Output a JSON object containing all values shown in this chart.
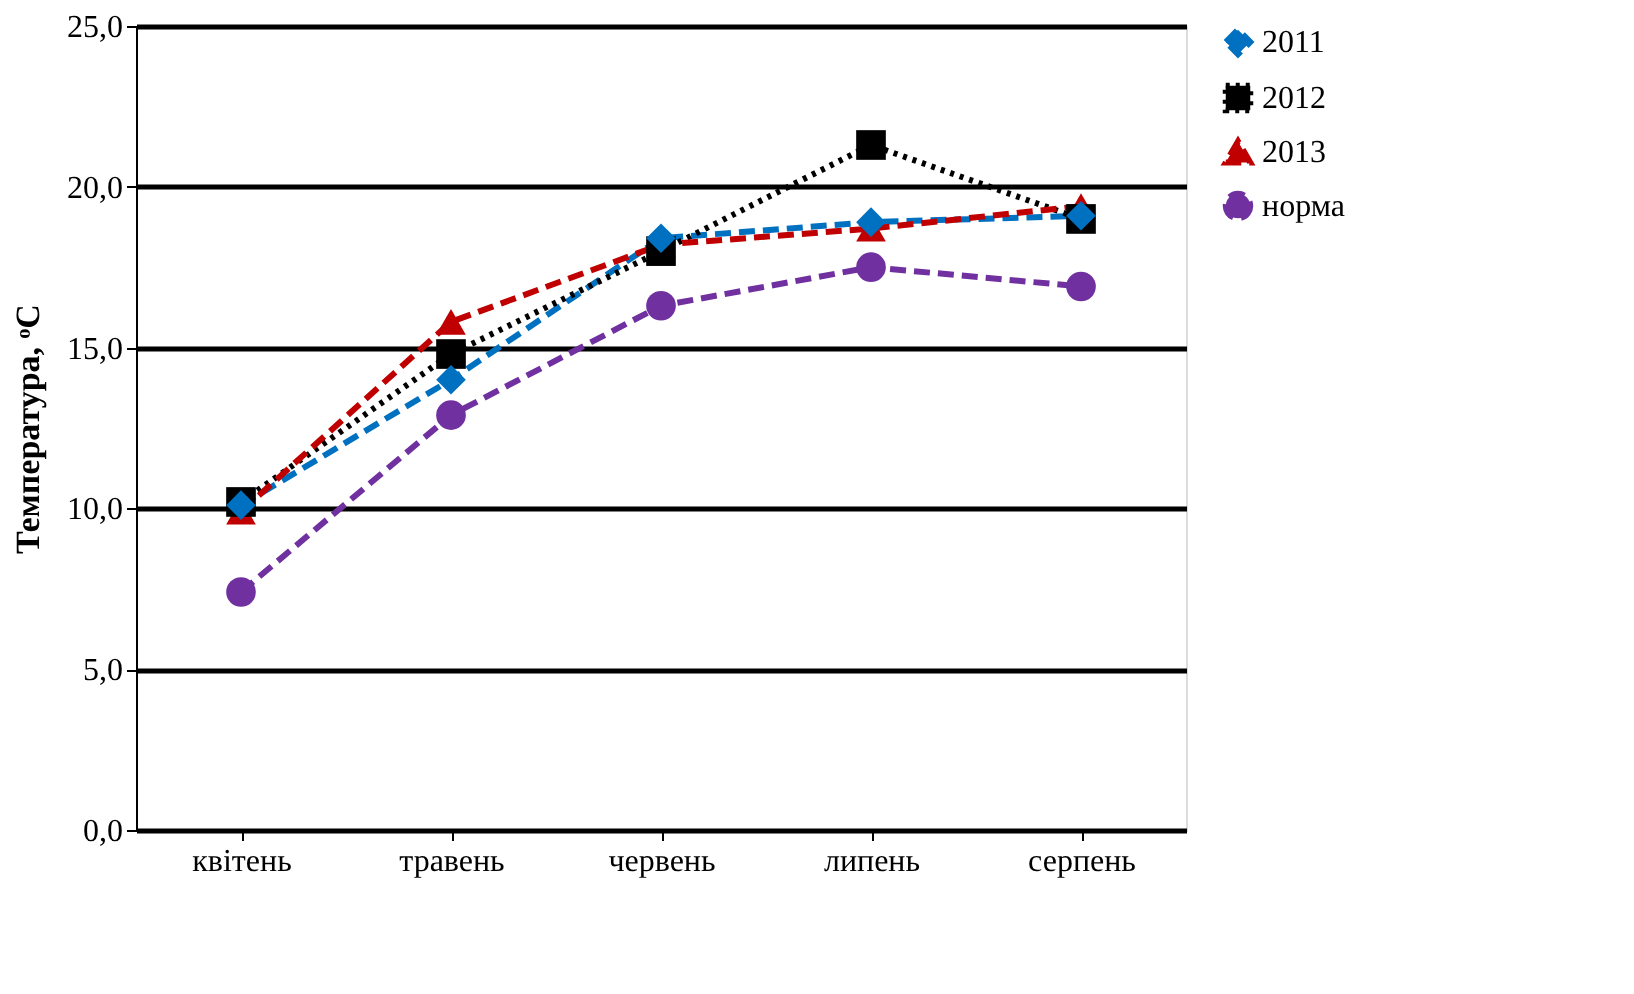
{
  "chart_data": {
    "type": "line",
    "ylabel": "Температура, ᵒC",
    "categories": [
      "квітень",
      "травень",
      "червень",
      "липень",
      "серпень"
    ],
    "series": [
      {
        "name": "2011",
        "color": "#0070c0",
        "marker": "diamond",
        "line_style": "dashed",
        "values": [
          10.1,
          14.0,
          18.4,
          18.9,
          19.1
        ]
      },
      {
        "name": "2012",
        "color": "#000000",
        "marker": "square",
        "line_style": "dotted",
        "values": [
          10.2,
          14.8,
          18.0,
          21.3,
          19.0
        ]
      },
      {
        "name": "2013",
        "color": "#c00000",
        "marker": "triangle",
        "line_style": "dashed",
        "values": [
          9.9,
          15.8,
          18.2,
          18.7,
          19.4
        ]
      },
      {
        "name": "норма",
        "color": "#7030a0",
        "marker": "circle",
        "line_style": "dashed",
        "values": [
          7.4,
          12.9,
          16.3,
          17.5,
          16.9
        ]
      }
    ],
    "ylim": [
      0,
      25
    ],
    "yticks": [
      {
        "value": 0,
        "label": "0,0"
      },
      {
        "value": 5,
        "label": "5,0"
      },
      {
        "value": 10,
        "label": "10,0"
      },
      {
        "value": 15,
        "label": "15,0"
      },
      {
        "value": 20,
        "label": "20,0"
      },
      {
        "value": 25,
        "label": "25,0"
      }
    ],
    "grid": "y",
    "legend": "right"
  }
}
